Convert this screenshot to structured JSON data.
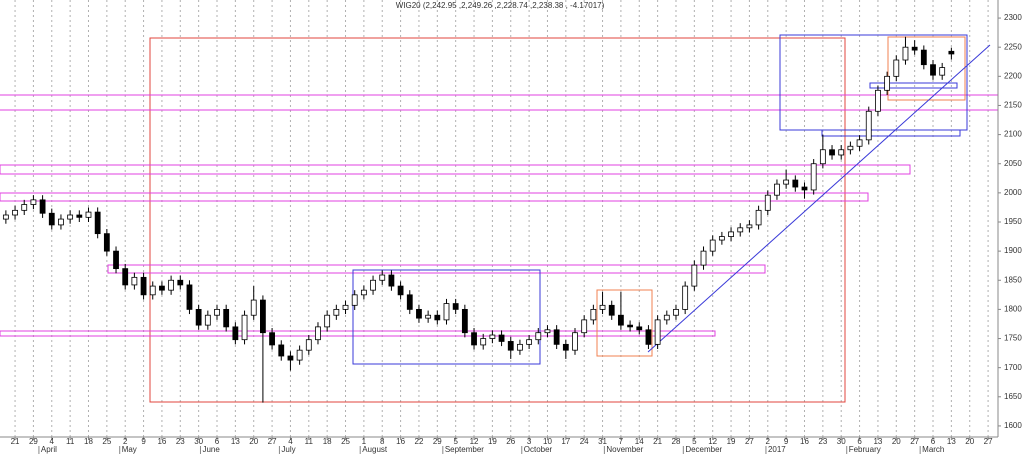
{
  "chart_data": {
    "type": "candlestick",
    "title": "WIG20 (2,242.95 ,2,249.26 ,2,228.74 ,2,238.38 , -4.17017)",
    "up_color": "#ffffff",
    "down_color": "#000000",
    "grid": true,
    "xlim": [
      -0.82,
      53.54
    ],
    "ylim": [
      1581,
      2331
    ],
    "yticks": [
      1600,
      1650,
      1700,
      1750,
      1800,
      1850,
      1900,
      1950,
      2000,
      2050,
      2100,
      2150,
      2200,
      2250,
      2300
    ],
    "xticks": [
      {
        "value": 0,
        "label": "21"
      },
      {
        "value": 1,
        "label": "29"
      },
      {
        "value": 2,
        "label": "4"
      },
      {
        "value": 3,
        "label": "11"
      },
      {
        "value": 4,
        "label": "18"
      },
      {
        "value": 5,
        "label": "25"
      },
      {
        "value": 6,
        "label": "2"
      },
      {
        "value": 7,
        "label": "9"
      },
      {
        "value": 8,
        "label": "16"
      },
      {
        "value": 9,
        "label": "23"
      },
      {
        "value": 10,
        "label": "30"
      },
      {
        "value": 11,
        "label": "6"
      },
      {
        "value": 12,
        "label": "13"
      },
      {
        "value": 13,
        "label": "20"
      },
      {
        "value": 14,
        "label": "27"
      },
      {
        "value": 15,
        "label": "4"
      },
      {
        "value": 16,
        "label": "11"
      },
      {
        "value": 17,
        "label": "18"
      },
      {
        "value": 18,
        "label": "25"
      },
      {
        "value": 19,
        "label": "1"
      },
      {
        "value": 20,
        "label": "8"
      },
      {
        "value": 21,
        "label": "16"
      },
      {
        "value": 22,
        "label": "22"
      },
      {
        "value": 23,
        "label": "29"
      },
      {
        "value": 24,
        "label": "5"
      },
      {
        "value": 25,
        "label": "12"
      },
      {
        "value": 26,
        "label": "19"
      },
      {
        "value": 27,
        "label": "26"
      },
      {
        "value": 28,
        "label": "3"
      },
      {
        "value": 29,
        "label": "10"
      },
      {
        "value": 30,
        "label": "17"
      },
      {
        "value": 31,
        "label": "24"
      },
      {
        "value": 32,
        "label": "31"
      },
      {
        "value": 33,
        "label": "7"
      },
      {
        "value": 34,
        "label": "14"
      },
      {
        "value": 35,
        "label": "21"
      },
      {
        "value": 36,
        "label": "28"
      },
      {
        "value": 37,
        "label": "5"
      },
      {
        "value": 38,
        "label": "12"
      },
      {
        "value": 39,
        "label": "19"
      },
      {
        "value": 40,
        "label": "27"
      },
      {
        "value": 41,
        "label": "2"
      },
      {
        "value": 42,
        "label": "9"
      },
      {
        "value": 43,
        "label": "16"
      },
      {
        "value": 44,
        "label": "23"
      },
      {
        "value": 45,
        "label": "30"
      },
      {
        "value": 46,
        "label": "6"
      },
      {
        "value": 47,
        "label": "13"
      },
      {
        "value": 48,
        "label": "20"
      },
      {
        "value": 49,
        "label": "27"
      },
      {
        "value": 50,
        "label": "6"
      },
      {
        "value": 51,
        "label": "13"
      },
      {
        "value": 52,
        "label": "20"
      },
      {
        "value": 53,
        "label": "27"
      }
    ],
    "month_labels": [
      {
        "value": 1.3,
        "label": "April"
      },
      {
        "value": 5.7,
        "label": "May"
      },
      {
        "value": 10.1,
        "label": "June"
      },
      {
        "value": 14.4,
        "label": "July"
      },
      {
        "value": 18.8,
        "label": "August"
      },
      {
        "value": 23.3,
        "label": "September"
      },
      {
        "value": 27.6,
        "label": "October"
      },
      {
        "value": 32.1,
        "label": "November"
      },
      {
        "value": 36.4,
        "label": "December"
      },
      {
        "value": 40.9,
        "label": "2017"
      },
      {
        "value": 45.3,
        "label": "February"
      },
      {
        "value": 49.3,
        "label": "March"
      }
    ],
    "x": [
      -0.5,
      0,
      0.5,
      1,
      1.5,
      2,
      2.5,
      3,
      3.5,
      4,
      4.5,
      5,
      5.5,
      6,
      6.5,
      7,
      7.5,
      8,
      8.5,
      9,
      9.5,
      10,
      10.5,
      11,
      11.5,
      12,
      12.5,
      13,
      13.5,
      14,
      14.5,
      15,
      15.5,
      16,
      16.5,
      17,
      17.5,
      18,
      18.5,
      19,
      19.5,
      20,
      20.5,
      21,
      21.5,
      22,
      22.5,
      23,
      23.5,
      24,
      24.5,
      25,
      25.5,
      26,
      26.5,
      27,
      27.5,
      28,
      28.5,
      29,
      29.5,
      30,
      30.5,
      31,
      31.5,
      32,
      32.5,
      33,
      33.5,
      34,
      34.5,
      35,
      35.5,
      36,
      36.5,
      37,
      37.5,
      38,
      38.5,
      39,
      39.5,
      40,
      40.5,
      41,
      41.5,
      42,
      42.5,
      43,
      43.5,
      44,
      44.5,
      45,
      45.5,
      46,
      46.5,
      47,
      47.5,
      48,
      48.5,
      49,
      49.5,
      50,
      50.5,
      51
    ],
    "open": [
      1955,
      1962,
      1970,
      1980,
      1988,
      1965,
      1945,
      1955,
      1962,
      1958,
      1967,
      1930,
      1900,
      1870,
      1842,
      1855,
      1825,
      1840,
      1833,
      1850,
      1842,
      1800,
      1773,
      1790,
      1800,
      1770,
      1748,
      1790,
      1816,
      1760,
      1739,
      1720,
      1713,
      1730,
      1748,
      1770,
      1790,
      1800,
      1807,
      1825,
      1833,
      1850,
      1859,
      1840,
      1825,
      1800,
      1785,
      1790,
      1782,
      1810,
      1800,
      1760,
      1739,
      1750,
      1756,
      1745,
      1730,
      1740,
      1748,
      1760,
      1765,
      1740,
      1730,
      1760,
      1782,
      1800,
      1807,
      1790,
      1773,
      1770,
      1765,
      1740,
      1782,
      1790,
      1800,
      1840,
      1876,
      1900,
      1919,
      1925,
      1933,
      1940,
      1945,
      1970,
      1996,
      2015,
      2022,
      2010,
      2005,
      2050,
      2074,
      2065,
      2074,
      2080,
      2091,
      2140,
      2176,
      2200,
      2228,
      2250,
      2245,
      2220,
      2202,
      2242.95
    ],
    "high": [
      1970,
      1978,
      1988,
      1996,
      1996,
      1973,
      1963,
      1970,
      1970,
      1975,
      1975,
      1938,
      1908,
      1878,
      1863,
      1863,
      1848,
      1848,
      1858,
      1858,
      1850,
      1808,
      1798,
      1808,
      1808,
      1778,
      1798,
      1840,
      1824,
      1768,
      1747,
      1728,
      1738,
      1756,
      1778,
      1798,
      1808,
      1815,
      1833,
      1841,
      1858,
      1867,
      1867,
      1848,
      1833,
      1808,
      1798,
      1798,
      1818,
      1818,
      1808,
      1768,
      1758,
      1764,
      1764,
      1753,
      1748,
      1756,
      1768,
      1773,
      1773,
      1748,
      1768,
      1790,
      1808,
      1830,
      1815,
      1830,
      1781,
      1778,
      1773,
      1790,
      1798,
      1808,
      1848,
      1884,
      1908,
      1927,
      1933,
      1941,
      1948,
      1953,
      1978,
      2004,
      2023,
      2040,
      2030,
      2018,
      2058,
      2100,
      2082,
      2082,
      2088,
      2099,
      2148,
      2184,
      2208,
      2236,
      2268,
      2262,
      2253,
      2228,
      2223,
      2249.26
    ],
    "low": [
      1947,
      1954,
      1962,
      1972,
      1957,
      1937,
      1937,
      1947,
      1950,
      1950,
      1922,
      1892,
      1862,
      1834,
      1834,
      1817,
      1817,
      1825,
      1825,
      1834,
      1792,
      1765,
      1765,
      1782,
      1762,
      1740,
      1740,
      1782,
      1640,
      1731,
      1712,
      1695,
      1705,
      1722,
      1740,
      1762,
      1782,
      1792,
      1799,
      1817,
      1825,
      1842,
      1832,
      1817,
      1792,
      1777,
      1777,
      1774,
      1774,
      1792,
      1752,
      1731,
      1731,
      1742,
      1737,
      1715,
      1722,
      1732,
      1740,
      1752,
      1732,
      1715,
      1722,
      1752,
      1774,
      1792,
      1782,
      1765,
      1762,
      1757,
      1732,
      1732,
      1774,
      1782,
      1792,
      1832,
      1868,
      1892,
      1911,
      1917,
      1925,
      1932,
      1937,
      1962,
      1988,
      2007,
      2002,
      1990,
      1997,
      2042,
      2057,
      2057,
      2066,
      2072,
      2083,
      2132,
      2168,
      2192,
      2220,
      2237,
      2212,
      2194,
      2194,
      2228.74
    ],
    "close": [
      1962,
      1970,
      1980,
      1988,
      1965,
      1945,
      1955,
      1962,
      1958,
      1967,
      1930,
      1900,
      1870,
      1842,
      1855,
      1825,
      1840,
      1833,
      1850,
      1842,
      1800,
      1773,
      1790,
      1800,
      1770,
      1748,
      1790,
      1816,
      1760,
      1739,
      1720,
      1713,
      1730,
      1748,
      1770,
      1790,
      1800,
      1807,
      1825,
      1833,
      1850,
      1859,
      1840,
      1825,
      1800,
      1785,
      1790,
      1782,
      1810,
      1800,
      1760,
      1739,
      1750,
      1756,
      1745,
      1730,
      1740,
      1748,
      1760,
      1765,
      1740,
      1730,
      1760,
      1782,
      1800,
      1807,
      1790,
      1773,
      1770,
      1765,
      1740,
      1782,
      1790,
      1800,
      1840,
      1876,
      1900,
      1919,
      1925,
      1933,
      1940,
      1945,
      1970,
      1996,
      2015,
      2022,
      2010,
      2005,
      2050,
      2074,
      2065,
      2074,
      2080,
      2091,
      2140,
      2176,
      2200,
      2228,
      2250,
      2245,
      2220,
      2202,
      2215,
      2238.38
    ]
  }
}
